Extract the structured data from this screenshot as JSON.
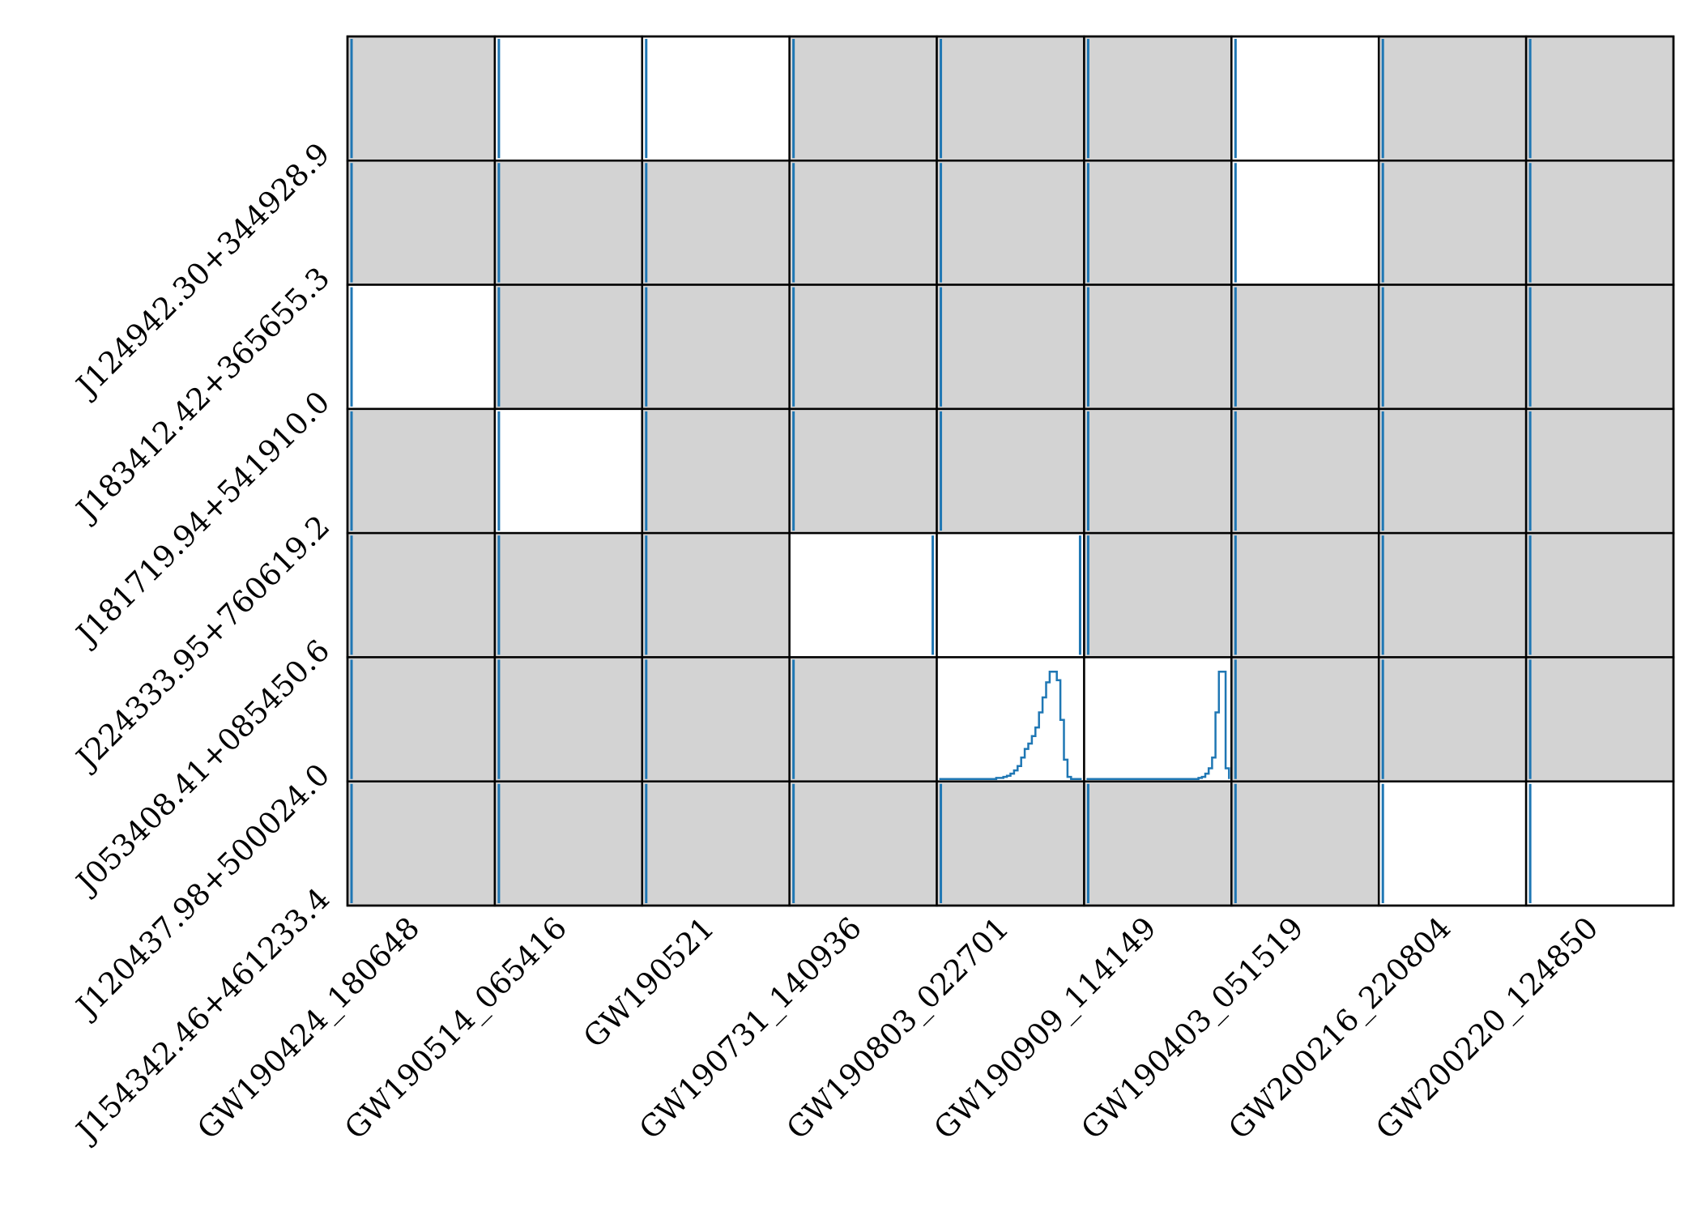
{
  "chart_data": {
    "type": "heatmap",
    "title": "",
    "xlabel": "",
    "ylabel": "",
    "rows": [
      "J124942.30+344928.9",
      "J183412.42+365655.3",
      "J181719.94+541910.0",
      "J224333.95+760619.2",
      "J053408.41+085450.6",
      "J120437.98+500024.0",
      "J154342.46+461233.4"
    ],
    "columns": [
      "GW190424_180648",
      "GW190514_065416",
      "GW190521",
      "GW190731_140936",
      "GW190803_022701",
      "GW190909_114149",
      "GW190403_051519",
      "GW200216_220804",
      "GW200220_124850"
    ],
    "cell_state": [
      [
        "gray",
        "white",
        "white",
        "gray",
        "gray",
        "gray",
        "white",
        "gray",
        "gray"
      ],
      [
        "gray",
        "gray",
        "gray",
        "gray",
        "gray",
        "gray",
        "white",
        "gray",
        "gray"
      ],
      [
        "white",
        "gray",
        "gray",
        "gray",
        "gray",
        "gray",
        "gray",
        "gray",
        "gray"
      ],
      [
        "gray",
        "white",
        "gray",
        "gray",
        "gray",
        "gray",
        "gray",
        "gray",
        "gray"
      ],
      [
        "gray",
        "gray",
        "gray",
        "white",
        "white",
        "gray",
        "gray",
        "gray",
        "gray"
      ],
      [
        "gray",
        "gray",
        "gray",
        "gray",
        "white",
        "white",
        "gray",
        "gray",
        "gray"
      ],
      [
        "gray",
        "gray",
        "gray",
        "gray",
        "gray",
        "gray",
        "gray",
        "white",
        "white"
      ]
    ],
    "histograms": [
      {
        "row": 5,
        "col": 4,
        "values": [
          0,
          0,
          0,
          0,
          0,
          0,
          0,
          0,
          0,
          0,
          0,
          0,
          0,
          0,
          0,
          0,
          0.01,
          0.01,
          0.02,
          0.03,
          0.05,
          0.08,
          0.12,
          0.2,
          0.28,
          0.33,
          0.4,
          0.48,
          0.62,
          0.76,
          0.9,
          1.0,
          1.0,
          0.92,
          0.55,
          0.18,
          0.02,
          0.0,
          0.0,
          0.0
        ]
      },
      {
        "row": 5,
        "col": 5,
        "values": [
          0,
          0,
          0,
          0,
          0,
          0,
          0,
          0,
          0,
          0,
          0,
          0,
          0,
          0,
          0,
          0,
          0,
          0,
          0,
          0,
          0,
          0,
          0,
          0,
          0,
          0,
          0,
          0,
          0,
          0,
          0,
          0,
          0,
          0.01,
          0.02,
          0.05,
          0.1,
          0.2,
          0.62,
          1.0,
          1.0,
          0.1
        ]
      }
    ],
    "colors": {
      "masked_cell": "#d3d3d3",
      "open_cell": "#ffffff",
      "histogram": "#1f77b4",
      "grid": "#000000"
    }
  }
}
